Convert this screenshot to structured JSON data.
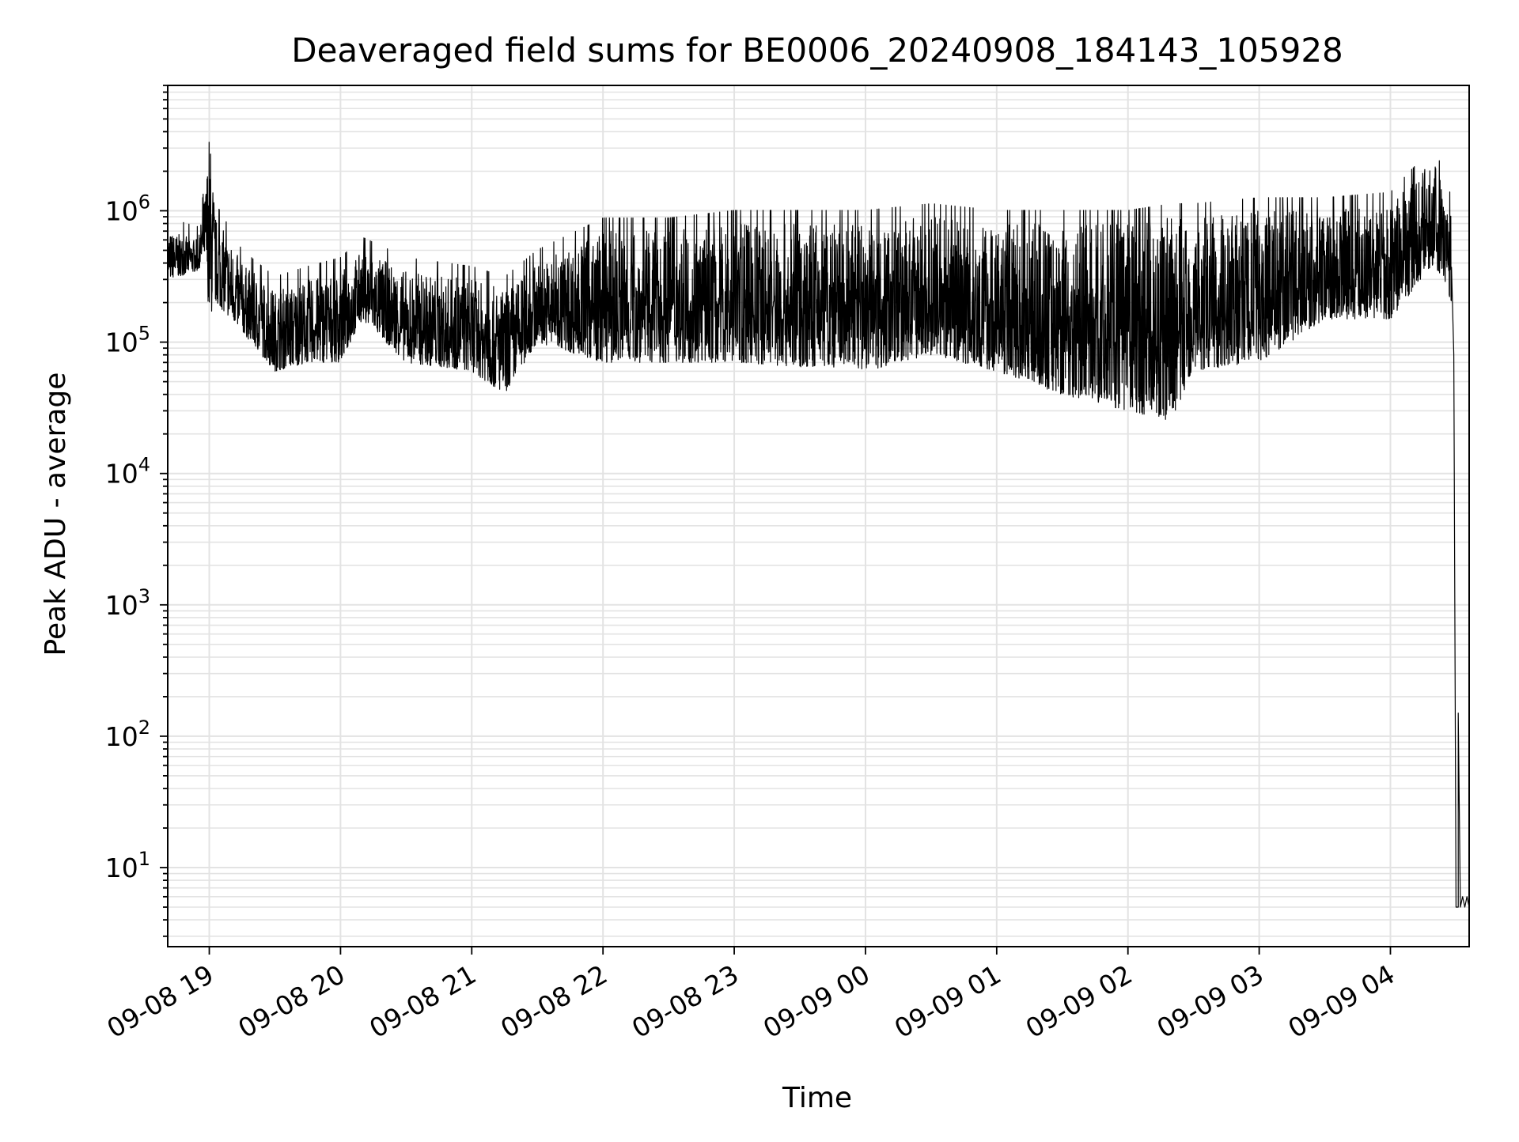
{
  "chart_data": {
    "type": "line",
    "title": "Deaveraged field sums for BE0006_20240908_184143_105928",
    "xlabel": "Time",
    "ylabel": "Peak ADU - average",
    "yscale": "log",
    "ylim": [
      2.5,
      9000000
    ],
    "xlim": [
      "2024-09-08 18:41",
      "2024-09-09 04:36"
    ],
    "grid": true,
    "line_color": "#000000",
    "grid_color": "#e3e3e3",
    "x_ticks": [
      {
        "value": "2024-09-08 19:00",
        "label": "09-08 19"
      },
      {
        "value": "2024-09-08 20:00",
        "label": "09-08 20"
      },
      {
        "value": "2024-09-08 21:00",
        "label": "09-08 21"
      },
      {
        "value": "2024-09-08 22:00",
        "label": "09-08 22"
      },
      {
        "value": "2024-09-08 23:00",
        "label": "09-08 23"
      },
      {
        "value": "2024-09-09 00:00",
        "label": "09-09 00"
      },
      {
        "value": "2024-09-09 01:00",
        "label": "09-09 01"
      },
      {
        "value": "2024-09-09 02:00",
        "label": "09-09 02"
      },
      {
        "value": "2024-09-09 03:00",
        "label": "09-09 03"
      },
      {
        "value": "2024-09-09 04:00",
        "label": "09-09 04"
      }
    ],
    "y_ticks": [
      {
        "value": 10,
        "base": "10",
        "exp": "1"
      },
      {
        "value": 100,
        "base": "10",
        "exp": "2"
      },
      {
        "value": 1000,
        "base": "10",
        "exp": "3"
      },
      {
        "value": 10000,
        "base": "10",
        "exp": "4"
      },
      {
        "value": 100000,
        "base": "10",
        "exp": "5"
      },
      {
        "value": 1000000,
        "base": "10",
        "exp": "6"
      }
    ],
    "series": [
      {
        "envelope": [
          {
            "x": "2024-09-08 18:41",
            "low": 300000,
            "high": 700000
          },
          {
            "x": "2024-09-08 18:55",
            "low": 350000,
            "high": 600000
          },
          {
            "x": "2024-09-08 18:58",
            "low": 450000,
            "high": 1300000
          },
          {
            "x": "2024-09-08 19:00",
            "low": 150000,
            "high": 4500000
          },
          {
            "x": "2024-09-08 19:03",
            "low": 200000,
            "high": 900000
          },
          {
            "x": "2024-09-08 19:15",
            "low": 120000,
            "high": 400000
          },
          {
            "x": "2024-09-08 19:30",
            "low": 60000,
            "high": 250000
          },
          {
            "x": "2024-09-08 19:45",
            "low": 70000,
            "high": 300000
          },
          {
            "x": "2024-09-08 20:00",
            "low": 70000,
            "high": 350000
          },
          {
            "x": "2024-09-08 20:10",
            "low": 150000,
            "high": 500000
          },
          {
            "x": "2024-09-08 20:30",
            "low": 70000,
            "high": 350000
          },
          {
            "x": "2024-09-08 21:00",
            "low": 60000,
            "high": 300000
          },
          {
            "x": "2024-09-08 21:15",
            "low": 40000,
            "high": 250000
          },
          {
            "x": "2024-09-08 21:30",
            "low": 100000,
            "high": 400000
          },
          {
            "x": "2024-09-08 22:00",
            "low": 70000,
            "high": 700000
          },
          {
            "x": "2024-09-08 22:30",
            "low": 70000,
            "high": 700000
          },
          {
            "x": "2024-09-08 23:00",
            "low": 70000,
            "high": 800000
          },
          {
            "x": "2024-09-09 00:00",
            "low": 60000,
            "high": 800000
          },
          {
            "x": "2024-09-09 00:30",
            "low": 80000,
            "high": 900000
          },
          {
            "x": "2024-09-09 01:00",
            "low": 60000,
            "high": 800000
          },
          {
            "x": "2024-09-09 01:30",
            "low": 40000,
            "high": 800000
          },
          {
            "x": "2024-09-09 02:00",
            "low": 30000,
            "high": 800000
          },
          {
            "x": "2024-09-09 02:20",
            "low": 25000,
            "high": 900000
          },
          {
            "x": "2024-09-09 02:30",
            "low": 60000,
            "high": 900000
          },
          {
            "x": "2024-09-09 03:00",
            "low": 70000,
            "high": 1000000
          },
          {
            "x": "2024-09-09 03:30",
            "low": 150000,
            "high": 1000000
          },
          {
            "x": "2024-09-09 04:00",
            "low": 150000,
            "high": 1100000
          },
          {
            "x": "2024-09-09 04:20",
            "low": 400000,
            "high": 2500000
          },
          {
            "x": "2024-09-09 04:28",
            "low": 200000,
            "high": 1000000
          }
        ],
        "tail": [
          {
            "x": "2024-09-09 04:29",
            "y": 80000
          },
          {
            "x": "2024-09-09 04:30",
            "y": 5
          },
          {
            "x": "2024-09-09 04:31",
            "y": 5
          },
          {
            "x": "2024-09-09 04:31",
            "y": 150
          },
          {
            "x": "2024-09-09 04:32",
            "y": 5
          },
          {
            "x": "2024-09-09 04:33",
            "y": 6
          },
          {
            "x": "2024-09-09 04:34",
            "y": 5
          },
          {
            "x": "2024-09-09 04:35",
            "y": 6
          },
          {
            "x": "2024-09-09 04:36",
            "y": 5
          }
        ]
      }
    ]
  }
}
